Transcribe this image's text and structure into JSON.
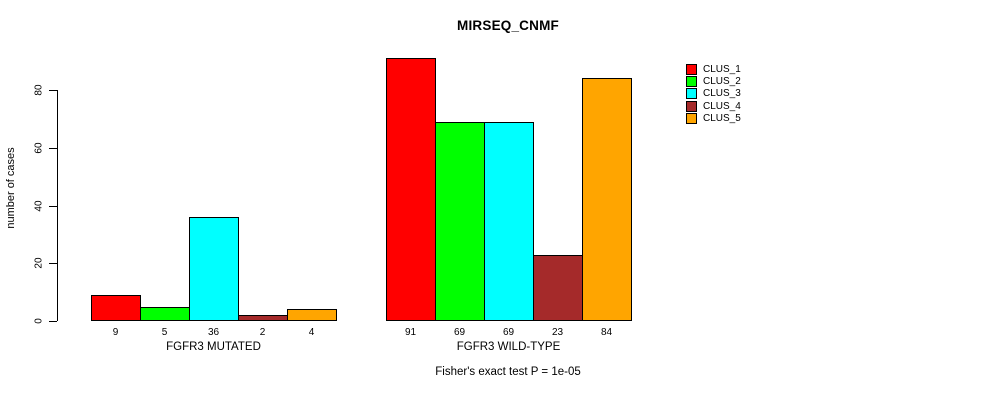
{
  "chart_data": {
    "type": "bar",
    "title": "MIRSEQ_CNMF",
    "ylabel": "number of cases",
    "footnote": "Fisher's exact test P = 1e-05",
    "yticks": [
      0,
      20,
      40,
      60,
      80
    ],
    "ylim": [
      0,
      91
    ],
    "grid": false,
    "background": "#FFFFFF",
    "legend_position": "right",
    "legend": [
      {
        "name": "CLUS_1",
        "color": "#FF0000"
      },
      {
        "name": "CLUS_2",
        "color": "#00FF00"
      },
      {
        "name": "CLUS_3",
        "color": "#00FFFF"
      },
      {
        "name": "CLUS_4",
        "color": "#A52A2A"
      },
      {
        "name": "CLUS_5",
        "color": "#FFA500"
      }
    ],
    "groups": [
      {
        "label": "FGFR3 MUTATED",
        "values": [
          9,
          5,
          36,
          2,
          4
        ]
      },
      {
        "label": "FGFR3 WILD-TYPE",
        "values": [
          91,
          69,
          69,
          23,
          84
        ]
      }
    ]
  }
}
